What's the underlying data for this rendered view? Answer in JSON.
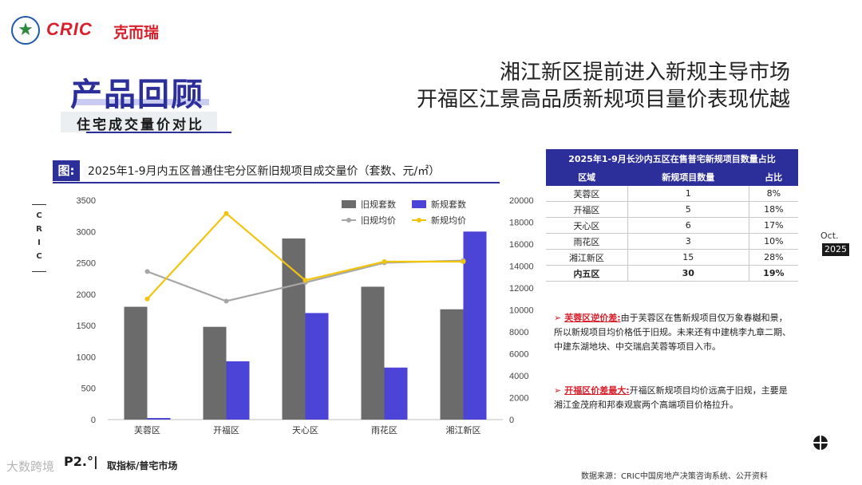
{
  "header": {
    "logo_text": "CRIC",
    "logo_cn": "克而瑞",
    "headline_line1": "湘江新区提前进入新规主导市场",
    "headline_line2": "开福区江景高品质新规项目量价表现优越"
  },
  "section": {
    "title": "产品回顾",
    "subtitle": "住宅成交量价对比"
  },
  "figure": {
    "tag": "图:",
    "title": "2025年1-9月内五区普通住宅分区新旧规项目成交量价（套数、元/㎡）"
  },
  "side_label": [
    "C",
    "R",
    "I",
    "C"
  ],
  "colors": {
    "old_bar": "#6b6b6b",
    "new_bar": "#4b44d6",
    "old_line": "#a6a6a6",
    "new_line": "#f2c40f",
    "brand_blue": "#2c2f9a",
    "brand_red": "#d7202b"
  },
  "chart_data": {
    "type": "bar",
    "categories": [
      "芙蓉区",
      "开福区",
      "天心区",
      "雨花区",
      "湘江新区"
    ],
    "series": [
      {
        "name": "旧规套数",
        "kind": "bar",
        "axis": "left",
        "values": [
          1800,
          1480,
          2890,
          2120,
          1760
        ]
      },
      {
        "name": "新规套数",
        "kind": "bar",
        "axis": "left",
        "values": [
          25,
          930,
          1700,
          830,
          3000
        ]
      },
      {
        "name": "旧规均价",
        "kind": "line",
        "axis": "right",
        "values": [
          13500,
          10800,
          12500,
          14300,
          14500
        ]
      },
      {
        "name": "新规均价",
        "kind": "line",
        "axis": "right",
        "values": [
          11000,
          18800,
          12700,
          14400,
          14400
        ]
      }
    ],
    "y_left": {
      "min": 0,
      "max": 3500,
      "ticks": [
        0,
        500,
        1000,
        1500,
        2000,
        2500,
        3000,
        3500
      ]
    },
    "y_right": {
      "min": 0,
      "max": 20000,
      "ticks": [
        0,
        2000,
        4000,
        6000,
        8000,
        10000,
        12000,
        14000,
        16000,
        18000,
        20000
      ]
    },
    "legend_position": "top-right",
    "grid": false
  },
  "table": {
    "caption": "2025年1-9月长沙内五区在售普宅新规项目数量占比",
    "headers": [
      "区域",
      "新规项目数量",
      "占比"
    ],
    "rows": [
      [
        "芙蓉区",
        "1",
        "8%"
      ],
      [
        "开福区",
        "5",
        "18%"
      ],
      [
        "天心区",
        "6",
        "17%"
      ],
      [
        "雨花区",
        "3",
        "10%"
      ],
      [
        "湘江新区",
        "15",
        "28%"
      ]
    ],
    "total": [
      "内五区",
      "30",
      "19%"
    ]
  },
  "notes": [
    {
      "key": "芙蓉区逆价差:",
      "text": "由于芙蓉区在售新规项目仅万象春樾和景，所以新规项目均价格低于旧规。未来还有中建桃李九章二期、中建东湖地块、中交瑞启芙蓉等项目入市。"
    },
    {
      "key": "开福区价差最大:",
      "text": "开福区新规项目均价远高于旧规，主要是湘江金茂府和邦泰观宸两个高端项目价格拉升。"
    }
  ],
  "date": {
    "month": "Oct.",
    "year": "2025"
  },
  "footer": {
    "page": "P2.°|",
    "left_text": "取指标/普宅市场",
    "source": "数据来源：CRIC中国房地产决策咨询系统、公开资料",
    "watermark": "大数跨境"
  }
}
